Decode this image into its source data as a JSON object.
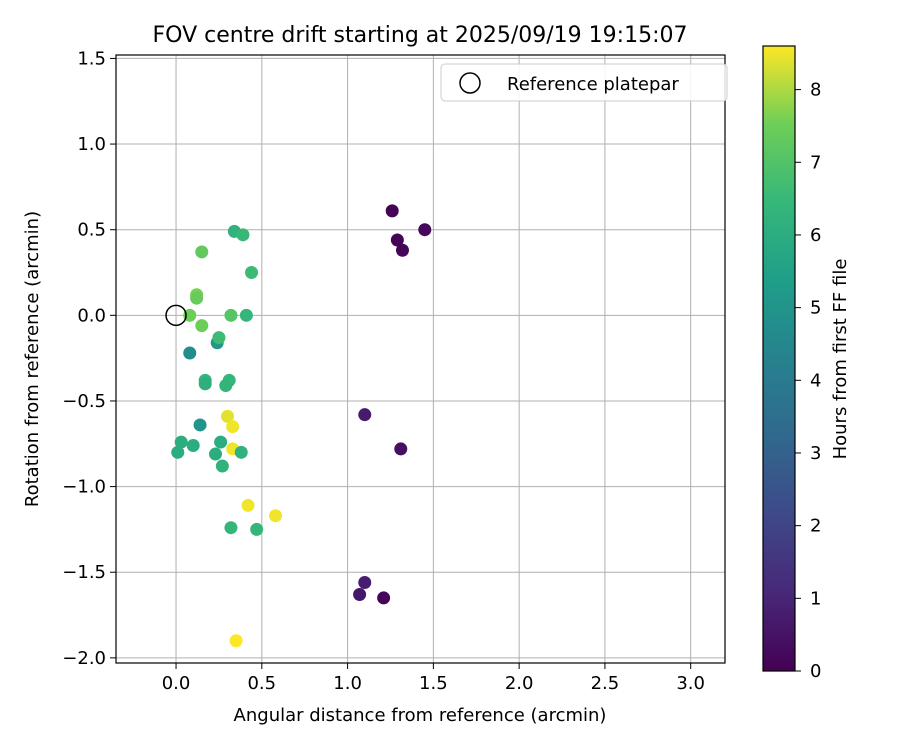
{
  "chart_data": {
    "type": "scatter",
    "title": "FOV centre drift starting at 2025/09/19 19:15:07",
    "xlabel": "Angular distance from reference (arcmin)",
    "ylabel": "Rotation from reference (arcmin)",
    "xlim": [
      -0.35,
      3.2
    ],
    "ylim": [
      -2.03,
      1.52
    ],
    "x_ticks": [
      0.0,
      0.5,
      1.0,
      1.5,
      2.0,
      2.5,
      3.0
    ],
    "x_tick_labels": [
      "0.0",
      "0.5",
      "1.0",
      "1.5",
      "2.0",
      "2.5",
      "3.0"
    ],
    "y_ticks": [
      1.5,
      1.0,
      0.5,
      0.0,
      -0.5,
      -1.0,
      -1.5,
      -2.0
    ],
    "y_tick_labels": [
      "1.5",
      "1.0",
      "0.5",
      "0.0",
      "−0.5",
      "−1.0",
      "−1.5",
      "−2.0"
    ],
    "grid": true,
    "legend": {
      "position": "top-right",
      "entries": [
        {
          "label": "Reference platepar",
          "marker": "open-circle"
        }
      ]
    },
    "reference_point": {
      "x": 0.0,
      "y": 0.0
    },
    "colorbar": {
      "label": "Hours from first FF file",
      "min": 0,
      "max": 8.6,
      "ticks": [
        0,
        1,
        2,
        3,
        4,
        5,
        6,
        7,
        8
      ],
      "tick_labels": [
        "0",
        "1",
        "2",
        "3",
        "4",
        "5",
        "6",
        "7",
        "8"
      ],
      "colormap": "viridis"
    },
    "series": [
      {
        "name": "FOV centre drift",
        "points": [
          {
            "x": 1.26,
            "y": 0.61,
            "c": 0.05
          },
          {
            "x": 1.29,
            "y": 0.44,
            "c": 0.1
          },
          {
            "x": 1.32,
            "y": 0.38,
            "c": 0.15
          },
          {
            "x": 1.45,
            "y": 0.5,
            "c": 0.2
          },
          {
            "x": 1.1,
            "y": -0.58,
            "c": 0.7
          },
          {
            "x": 1.31,
            "y": -0.78,
            "c": 0.4
          },
          {
            "x": 1.1,
            "y": -1.56,
            "c": 0.8
          },
          {
            "x": 1.07,
            "y": -1.63,
            "c": 0.6
          },
          {
            "x": 1.21,
            "y": -1.65,
            "c": 0.15
          },
          {
            "x": 0.08,
            "y": -0.22,
            "c": 4.7
          },
          {
            "x": 0.24,
            "y": -0.16,
            "c": 5.1
          },
          {
            "x": 0.14,
            "y": -0.64,
            "c": 5.0
          },
          {
            "x": 0.34,
            "y": 0.49,
            "c": 6.2
          },
          {
            "x": 0.39,
            "y": 0.47,
            "c": 6.5
          },
          {
            "x": 0.44,
            "y": 0.25,
            "c": 6.6
          },
          {
            "x": 0.15,
            "y": 0.37,
            "c": 7.3
          },
          {
            "x": 0.12,
            "y": 0.12,
            "c": 7.6
          },
          {
            "x": 0.12,
            "y": 0.1,
            "c": 7.4
          },
          {
            "x": 0.08,
            "y": 0.0,
            "c": 7.5
          },
          {
            "x": 0.32,
            "y": 0.0,
            "c": 7.1
          },
          {
            "x": 0.41,
            "y": 0.0,
            "c": 6.4
          },
          {
            "x": 0.15,
            "y": -0.06,
            "c": 7.5
          },
          {
            "x": 0.25,
            "y": -0.13,
            "c": 6.6
          },
          {
            "x": 0.17,
            "y": -0.38,
            "c": 6.3
          },
          {
            "x": 0.17,
            "y": -0.4,
            "c": 6.1
          },
          {
            "x": 0.31,
            "y": -0.38,
            "c": 6.4
          },
          {
            "x": 0.29,
            "y": -0.41,
            "c": 6.3
          },
          {
            "x": 0.3,
            "y": -0.59,
            "c": 8.4
          },
          {
            "x": 0.33,
            "y": -0.65,
            "c": 8.5
          },
          {
            "x": 0.03,
            "y": -0.74,
            "c": 6.0
          },
          {
            "x": 0.1,
            "y": -0.76,
            "c": 6.0
          },
          {
            "x": 0.26,
            "y": -0.74,
            "c": 6.0
          },
          {
            "x": 0.01,
            "y": -0.8,
            "c": 6.0
          },
          {
            "x": 0.23,
            "y": -0.81,
            "c": 6.0
          },
          {
            "x": 0.33,
            "y": -0.78,
            "c": 8.5
          },
          {
            "x": 0.38,
            "y": -0.8,
            "c": 6.2
          },
          {
            "x": 0.27,
            "y": -0.88,
            "c": 6.2
          },
          {
            "x": 0.42,
            "y": -1.11,
            "c": 8.5
          },
          {
            "x": 0.58,
            "y": -1.17,
            "c": 8.5
          },
          {
            "x": 0.32,
            "y": -1.24,
            "c": 6.4
          },
          {
            "x": 0.47,
            "y": -1.25,
            "c": 6.4
          },
          {
            "x": 0.35,
            "y": -1.9,
            "c": 8.6
          }
        ]
      }
    ]
  }
}
